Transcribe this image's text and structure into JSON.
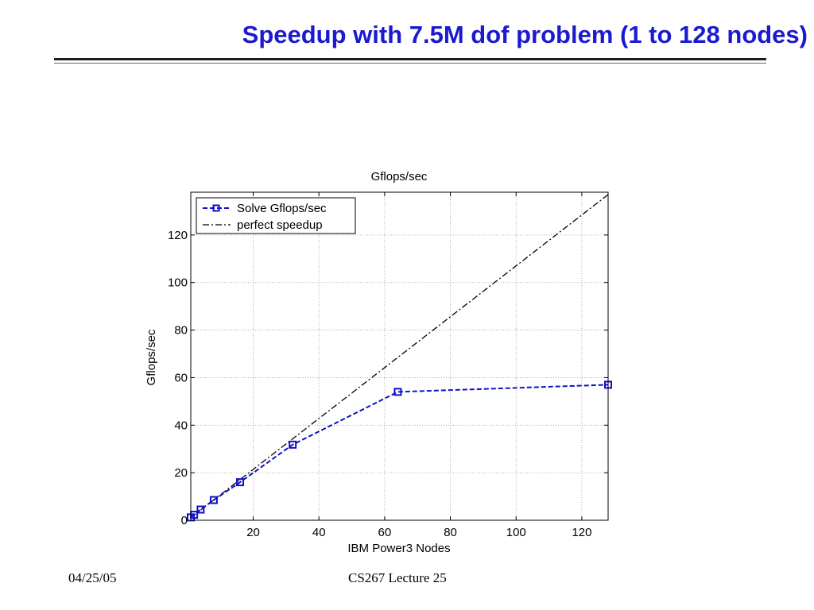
{
  "slide": {
    "title": "Speedup with 7.5M dof problem (1 to 128 nodes)",
    "footer_date": "04/25/05",
    "footer_course": "CS267 Lecture 25"
  },
  "colors": {
    "title": "#1a1ad0",
    "series_solve": "#1010c8",
    "series_perfect": "#000000",
    "grid": "#9a9a9a"
  },
  "chart_data": {
    "type": "line",
    "title": "Gflops/sec",
    "xlabel": "IBM Power3 Nodes",
    "ylabel": "Gflops/sec",
    "xlim": [
      1,
      128
    ],
    "ylim": [
      0,
      138
    ],
    "xticks": [
      20,
      40,
      60,
      80,
      100,
      120
    ],
    "yticks": [
      0,
      20,
      40,
      60,
      80,
      100,
      120
    ],
    "grid": true,
    "legend_position": "top-left",
    "series": [
      {
        "name": "Solve Gflops/sec",
        "style": "dashed-square-markers",
        "color": "#1010c8",
        "x": [
          1,
          2,
          4,
          8,
          16,
          32,
          64,
          128
        ],
        "y": [
          1.2,
          2.3,
          4.5,
          8.5,
          16,
          31.8,
          54,
          57
        ]
      },
      {
        "name": "perfect speedup",
        "style": "dash-dot",
        "color": "#000000",
        "x": [
          1,
          128
        ],
        "y": [
          1.07,
          137
        ]
      }
    ]
  }
}
